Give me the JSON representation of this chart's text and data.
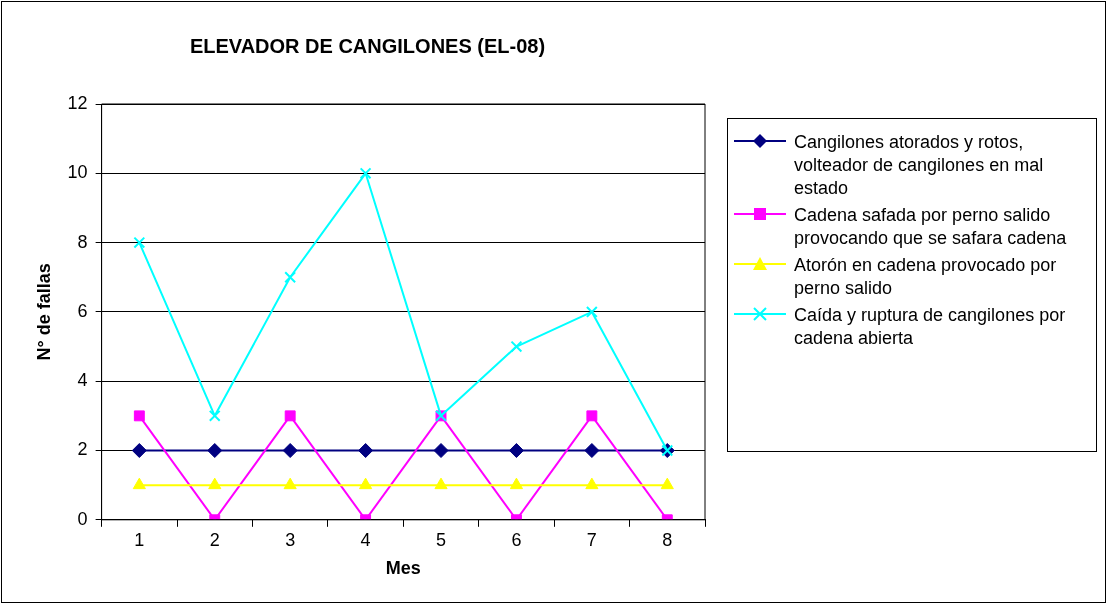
{
  "chart_data": {
    "type": "line",
    "title": "ELEVADOR DE CANGILONES (EL-08)",
    "xlabel": "Mes",
    "ylabel": "N° de fallas",
    "categories": [
      "1",
      "2",
      "3",
      "4",
      "5",
      "6",
      "7",
      "8"
    ],
    "series": [
      {
        "name": "Cangilones atorados y rotos, volteador de cangilones en mal estado",
        "color": "#000080",
        "marker": "diamond",
        "values": [
          2,
          2,
          2,
          2,
          2,
          2,
          2,
          2
        ]
      },
      {
        "name": "Cadena safada por perno salido provocando que se safara cadena",
        "color": "#ff00ff",
        "marker": "square",
        "values": [
          3,
          0,
          3,
          0,
          3,
          0,
          3,
          0
        ]
      },
      {
        "name": "Atorón en cadena provocado por perno salido",
        "color": "#ffff00",
        "marker": "triangle",
        "values": [
          1,
          1,
          1,
          1,
          1,
          1,
          1,
          1
        ]
      },
      {
        "name": "Caída y ruptura de cangilones por cadena abierta",
        "color": "#00ffff",
        "marker": "cross",
        "values": [
          8,
          3,
          7,
          10,
          3,
          5,
          6,
          2
        ]
      }
    ],
    "ylim": [
      0,
      12
    ],
    "yticks": [
      0,
      2,
      4,
      6,
      8,
      10,
      12
    ],
    "grid": "y",
    "legend": "right",
    "line_style": "solid"
  }
}
